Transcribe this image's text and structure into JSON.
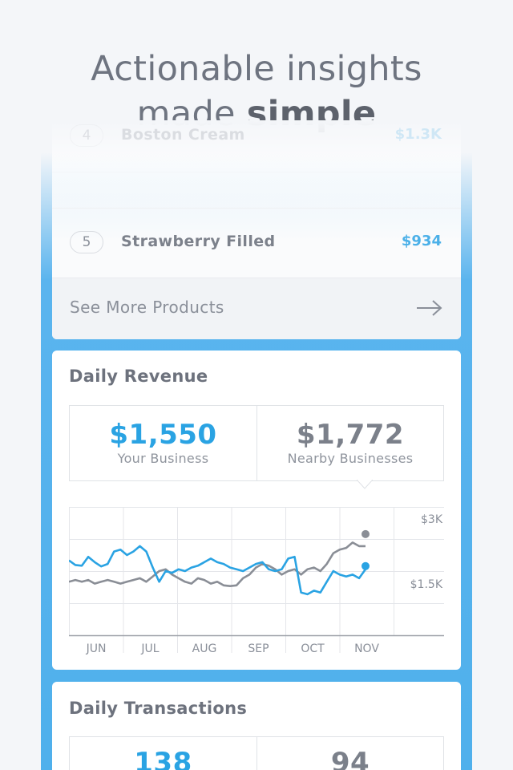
{
  "headline": {
    "line1": "Actionable insights",
    "line2_normal": "made ",
    "line2_bold": "simple"
  },
  "products": {
    "rows": [
      {
        "rank": "4",
        "name": "Boston Cream",
        "amount": "$1.3K"
      },
      {
        "rank": "5",
        "name": "Strawberry Filled",
        "amount": "$934"
      }
    ],
    "see_more_label": "See More Products",
    "see_more_icon": "arrow-right-icon"
  },
  "revenue": {
    "title": "Daily Revenue",
    "your_value": "$1,550",
    "your_label": "Your Business",
    "nearby_value": "$1,772",
    "nearby_label": "Nearby Businesses"
  },
  "chart_data": {
    "type": "line",
    "title": "",
    "x_labels": [
      "JUN",
      "JUL",
      "AUG",
      "SEP",
      "OCT",
      "NOV"
    ],
    "y_labels": [
      "$3K",
      "$1.5K"
    ],
    "ylim": [
      0,
      3600
    ],
    "grid": true,
    "colors": {
      "your": "#2aa3e3",
      "nearby": "#8a8e96"
    },
    "series": [
      {
        "name": "Your Business",
        "values": [
          2100,
          1970,
          1950,
          2200,
          2050,
          1930,
          2000,
          2350,
          2400,
          2250,
          2350,
          2500,
          2350,
          1900,
          1500,
          1800,
          1750,
          1850,
          1800,
          1900,
          1950,
          2050,
          2150,
          2050,
          2000,
          1900,
          1850,
          1800,
          1900,
          2000,
          2050,
          1850,
          1800,
          1850,
          2150,
          2200,
          1200,
          1150,
          1250,
          1200,
          1500,
          1800,
          1700,
          1650,
          1700,
          1600,
          1850
        ]
      },
      {
        "name": "Nearby Businesses",
        "values": [
          1500,
          1550,
          1500,
          1550,
          1450,
          1500,
          1550,
          1500,
          1450,
          1500,
          1550,
          1600,
          1500,
          1650,
          1800,
          1850,
          1700,
          1600,
          1500,
          1450,
          1600,
          1550,
          1450,
          1500,
          1400,
          1380,
          1400,
          1600,
          1700,
          1900,
          2000,
          1950,
          1850,
          1700,
          1800,
          1850,
          1700,
          1850,
          1900,
          1800,
          2000,
          2300,
          2400,
          2450,
          2600,
          2500,
          2500
        ]
      }
    ]
  },
  "transactions": {
    "title": "Daily Transactions",
    "your_value": "138",
    "nearby_value": "94"
  }
}
